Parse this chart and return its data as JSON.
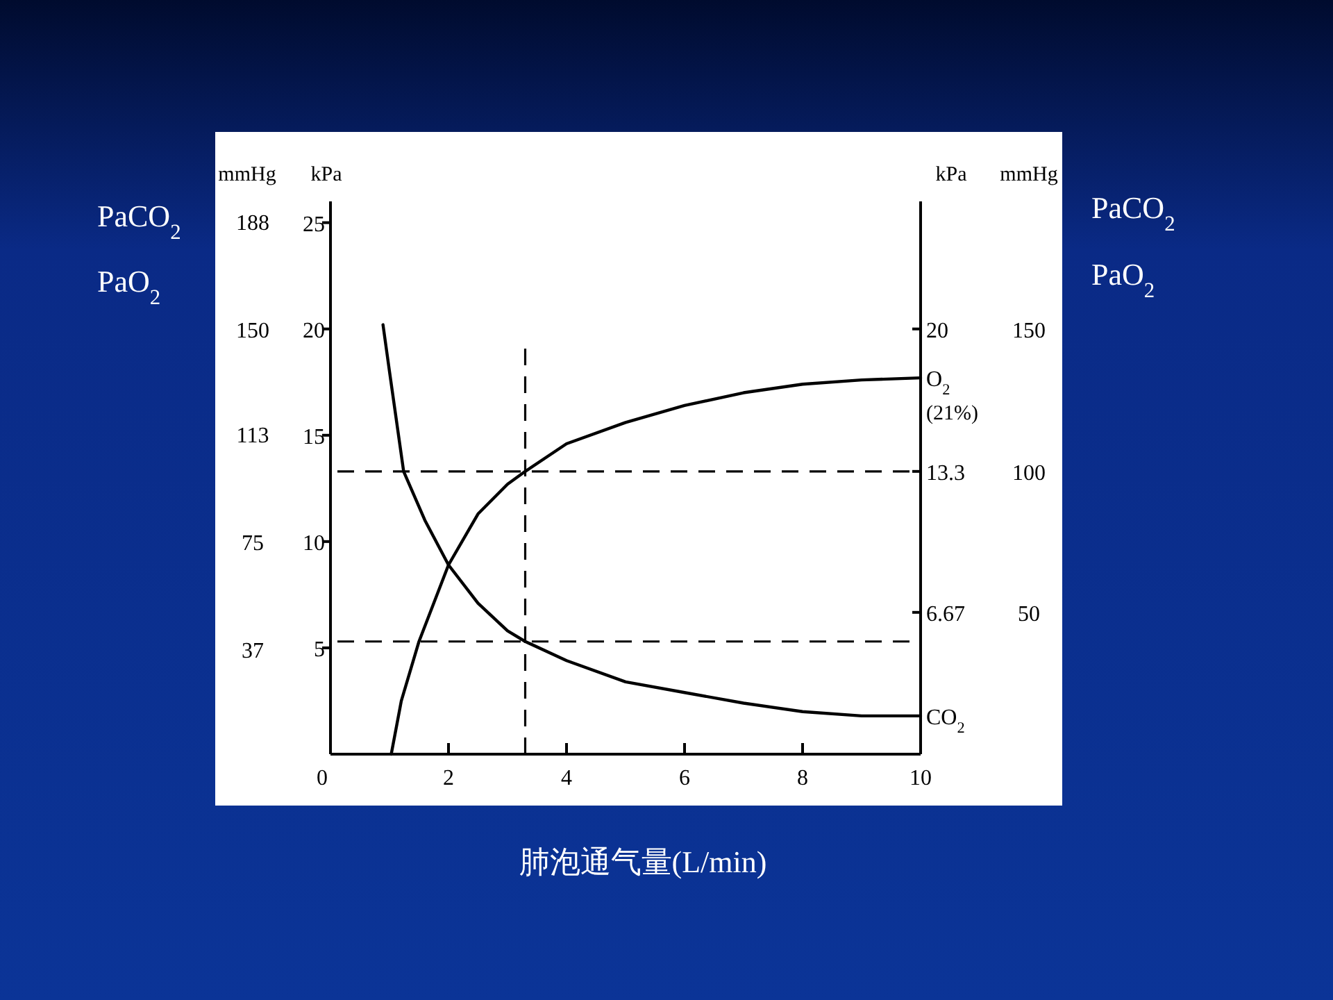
{
  "chart_data": {
    "type": "line",
    "xlabel": "肺泡通气量(L/min)",
    "ylabel": "kPa",
    "y2label": "mmHg",
    "y3label": "kPa",
    "xlim": [
      0,
      10
    ],
    "xticks": [
      0,
      2,
      4,
      6,
      8,
      10
    ],
    "ylim": [
      0,
      26
    ],
    "yticks": [
      5,
      10,
      15,
      20,
      25
    ],
    "y2lim": [
      0,
      195
    ],
    "y2ticks": [
      37,
      75,
      113,
      150,
      188
    ],
    "y3lim": [
      0,
      26
    ],
    "y3ticks": [
      6.67,
      13.3,
      20
    ],
    "marker": "none",
    "line_style": "solid",
    "grid": false,
    "legend": false,
    "series": [
      {
        "name": "O$_{2}$ (21%)",
        "color": "#000000",
        "x": [
          1.03,
          1.2,
          1.5,
          2.0,
          2.5,
          3.0,
          3.3,
          4,
          5,
          6,
          7,
          8,
          9,
          10
        ],
        "values": [
          0,
          2.5,
          5.3,
          8.9,
          11.3,
          12.7,
          13.3,
          14.6,
          15.6,
          16.4,
          17.0,
          17.4,
          17.6,
          17.7
        ]
      },
      {
        "name": "CO$_{2}$",
        "color": "#000000",
        "x": [
          0.89,
          1.0,
          1.24,
          1.6,
          2.0,
          2.5,
          3.0,
          3.3,
          4,
          5,
          6,
          7,
          8,
          9,
          10
        ],
        "values": [
          20.2,
          18,
          13.3,
          11,
          8.9,
          7.1,
          5.8,
          5.3,
          4.4,
          3.4,
          2.9,
          2.4,
          2.0,
          1.8,
          1.8
        ]
      }
    ],
    "ref_lines": [
      {
        "axis": "x",
        "value": 3.3,
        "line_style": "dashed"
      },
      {
        "axis": "y",
        "value": 13.3,
        "line_style": "dashed"
      },
      {
        "axis": "y",
        "value": 5.3,
        "line_style": "dashed"
      }
    ],
    "annotations": [
      "PaCO$_{2}$",
      "PaO$_{2}$",
      "PaCO$_{2}$",
      "PaO$_{2}$",
      "mmHg",
      "50",
      "100",
      "150"
    ]
  }
}
